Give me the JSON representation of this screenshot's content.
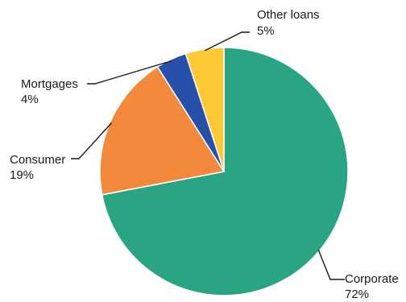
{
  "chart_data": {
    "type": "pie",
    "title": "",
    "start_angle_deg": 0,
    "direction": "clockwise",
    "slices": [
      {
        "label": "Corporate",
        "value": 72,
        "value_label": "72%",
        "color": "#2aa584"
      },
      {
        "label": "Consumer",
        "value": 19,
        "value_label": "19%",
        "color": "#f38a3b"
      },
      {
        "label": "Mortgages",
        "value": 4,
        "value_label": "4%",
        "color": "#2650aa"
      },
      {
        "label": "Other loans",
        "value": 5,
        "value_label": "5%",
        "color": "#ffc935"
      }
    ]
  }
}
